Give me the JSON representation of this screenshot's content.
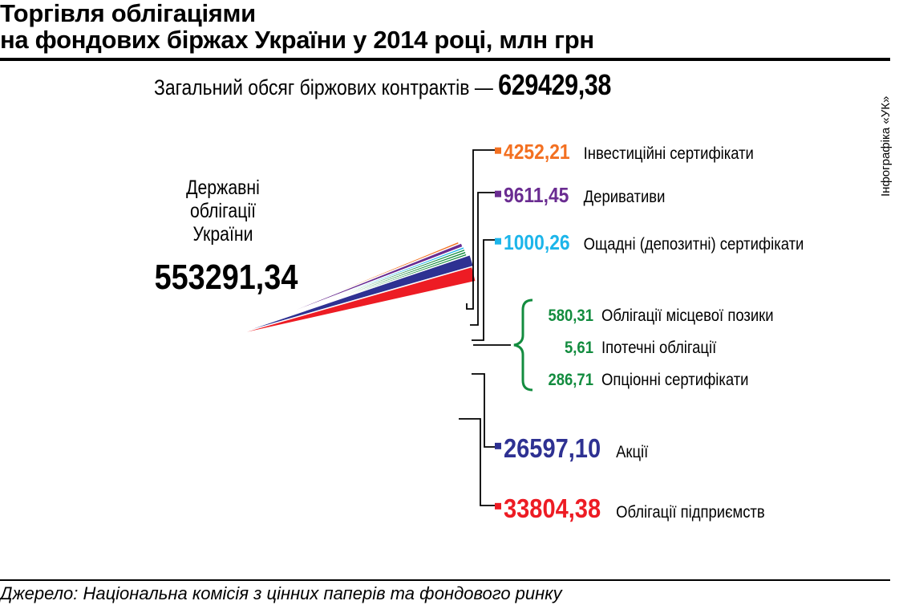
{
  "header": {
    "title_line1": "Торгівля облігаціями",
    "title_line2": "на фондових біржах України у 2014 році, млн грн",
    "total_label": "Загальний обсяг біржових контрактів —",
    "total_value": "629429,38"
  },
  "credit": "Інфографіка «УК»",
  "source": "Джерело: Національна комісія з цінних паперів та фондового ринку",
  "chart_data": {
    "type": "pie",
    "title": "Торгівля облігаціями на фондових біржах України у 2014 році, млн грн",
    "unit": "млн грн",
    "total": 629429.38,
    "slices": [
      {
        "label": "Державні облігації України",
        "label_lines": [
          "Державні",
          "облігації",
          "України"
        ],
        "value": 553291.34,
        "value_text": "553291,34",
        "color": "#FFF200"
      },
      {
        "label": "Інвестиційні сертифікати",
        "value": 4252.21,
        "value_text": "4252,21",
        "color": "#F37021"
      },
      {
        "label": "Деривативи",
        "value": 9611.45,
        "value_text": "9611,45",
        "color": "#6A2C91"
      },
      {
        "label": "Ощадні (депозитні) сертифікати",
        "value": 1000.26,
        "value_text": "1000,26",
        "color": "#1CB5EA"
      },
      {
        "label": "Облігації місцевої позики",
        "value": 580.31,
        "value_text": "580,31",
        "color": "#138C3F"
      },
      {
        "label": "Іпотечні облігації",
        "value": 5.61,
        "value_text": "5,61",
        "color": "#138C3F"
      },
      {
        "label": "Опціонні сертифікати",
        "value": 286.71,
        "value_text": "286,71",
        "color": "#138C3F"
      },
      {
        "label": "Акції",
        "value": 26597.1,
        "value_text": "26597,10",
        "color": "#2E3192"
      },
      {
        "label": "Облігації підприємств",
        "value": 33804.38,
        "value_text": "33804,38",
        "color": "#ED1C24"
      }
    ]
  }
}
